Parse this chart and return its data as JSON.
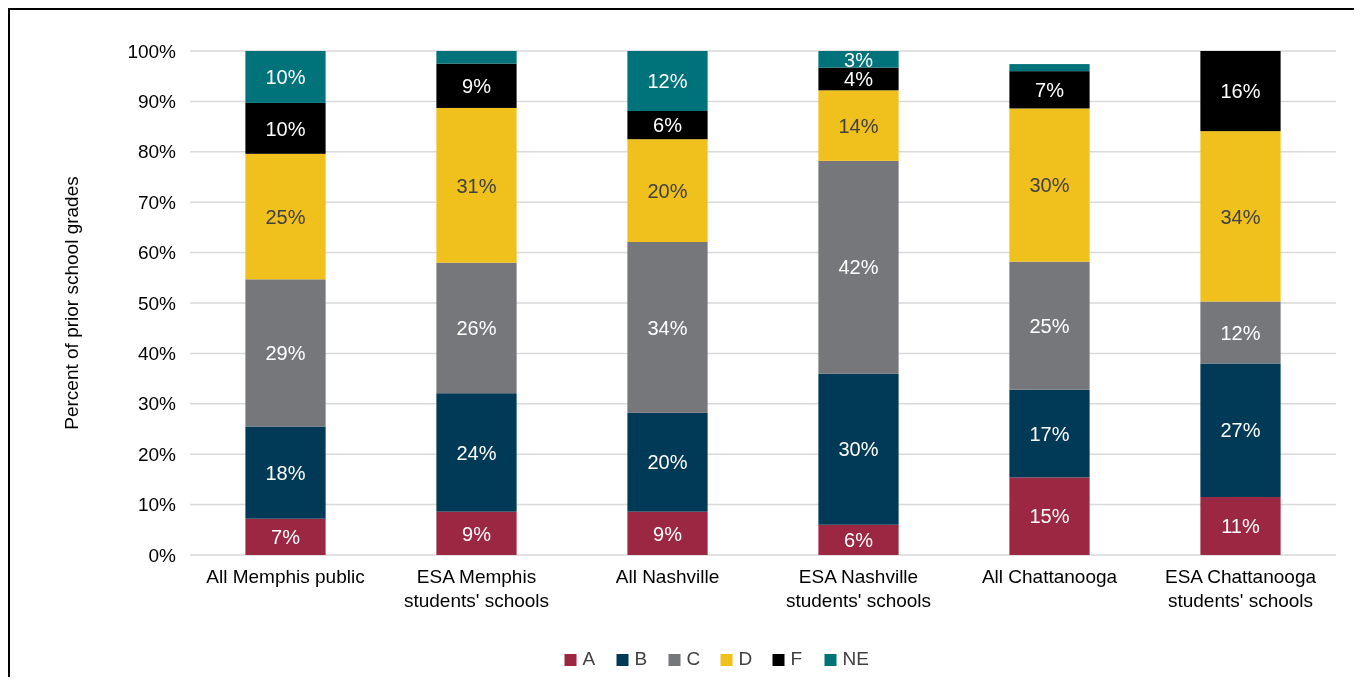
{
  "chart_data": {
    "type": "bar",
    "stacked": true,
    "ylabel": "Percent of prior school grades",
    "categories": [
      "All Memphis public",
      "ESA Memphis students' schools",
      "All Nashville",
      "ESA Nashville students' schools",
      "All Chattanooga",
      "ESA Chattanooga students' schools"
    ],
    "series": [
      {
        "name": "A",
        "color": "#9b2743",
        "values": [
          7.2,
          8.6,
          8.6,
          6.0,
          15.4,
          11.5
        ],
        "value_labels": [
          "7%",
          "9%",
          "9%",
          "6%",
          "15%",
          "11%"
        ]
      },
      {
        "name": "B",
        "color": "#003a56",
        "values": [
          18.3,
          23.5,
          19.6,
          30.0,
          17.4,
          26.5
        ],
        "value_labels": [
          "18%",
          "24%",
          "20%",
          "30%",
          "17%",
          "27%"
        ]
      },
      {
        "name": "C",
        "color": "#76777a",
        "values": [
          29.2,
          25.9,
          33.9,
          42.2,
          25.4,
          12.3
        ],
        "value_labels": [
          "29%",
          "26%",
          "34%",
          "42%",
          "25%",
          "12%"
        ]
      },
      {
        "name": "D",
        "color": "#f0c01c",
        "values": [
          24.9,
          30.7,
          20.4,
          14.0,
          30.4,
          33.8
        ],
        "value_labels": [
          "25%",
          "31%",
          "20%",
          "14%",
          "30%",
          "34%"
        ]
      },
      {
        "name": "F",
        "color": "#000000",
        "values": [
          10.1,
          8.8,
          5.6,
          4.5,
          7.4,
          15.9
        ],
        "value_labels": [
          "10%",
          "9%",
          "6%",
          "4%",
          "7%",
          "16%"
        ]
      },
      {
        "name": "NE",
        "color": "#00727a",
        "values": [
          10.3,
          2.5,
          11.9,
          3.3,
          1.4,
          null
        ],
        "value_labels": [
          "10%",
          null,
          "12%",
          "3%",
          null,
          null
        ]
      }
    ],
    "ylim": [
      0,
      100
    ],
    "yticks": [
      {
        "value": 0,
        "label": "0%"
      },
      {
        "value": 10,
        "label": "10%"
      },
      {
        "value": 20,
        "label": "20%"
      },
      {
        "value": 30,
        "label": "30%"
      },
      {
        "value": 40,
        "label": "40%"
      },
      {
        "value": 50,
        "label": "50%"
      },
      {
        "value": 60,
        "label": "60%"
      },
      {
        "value": 70,
        "label": "70%"
      },
      {
        "value": 80,
        "label": "80%"
      },
      {
        "value": 90,
        "label": "90%"
      },
      {
        "value": 100,
        "label": "100%"
      }
    ],
    "grid": "y",
    "legend": "bottom"
  }
}
